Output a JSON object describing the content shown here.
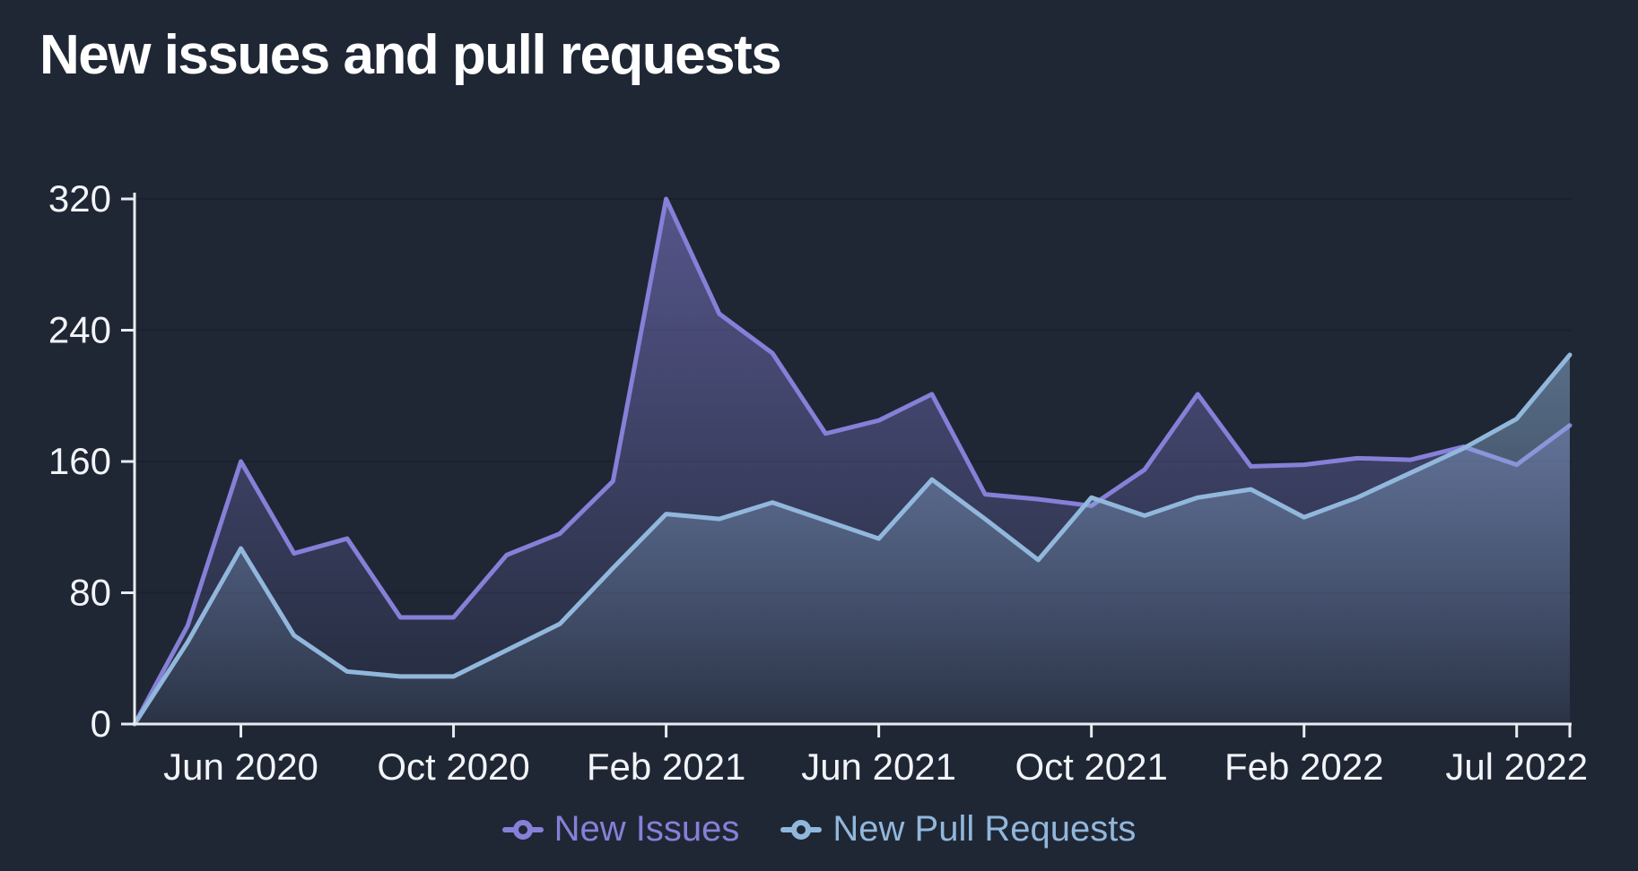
{
  "header": {
    "title": "New issues and pull requests"
  },
  "colors": {
    "background": "#1f2735",
    "axis_line": "#e9ecf1",
    "axis_text": "#f2f4f8",
    "gridline": "#1a212e",
    "title_text": "#ffffff",
    "issues_accent": "#8680d8",
    "pull_requests_accent": "#92b7dc"
  },
  "legend": {
    "items": [
      {
        "label": "New Issues",
        "color": "#8680d8"
      },
      {
        "label": "New Pull Requests",
        "color": "#92b7dc"
      }
    ]
  },
  "chart_data": {
    "type": "area",
    "title": "New issues and pull requests",
    "xlabel": "",
    "ylabel": "",
    "ylim": [
      0,
      320
    ],
    "y_tick_step": 80,
    "y_tick_labels": [
      "0",
      "80",
      "160",
      "240",
      "320"
    ],
    "grid": true,
    "legend_position": "bottom",
    "categories": [
      "Apr 2020",
      "May 2020",
      "Jun 2020",
      "Jul 2020",
      "Aug 2020",
      "Sep 2020",
      "Oct 2020",
      "Nov 2020",
      "Dec 2020",
      "Jan 2021",
      "Feb 2021",
      "Mar 2021",
      "Apr 2021",
      "May 2021",
      "Jun 2021",
      "Jul 2021",
      "Aug 2021",
      "Sep 2021",
      "Oct 2021",
      "Nov 2021",
      "Dec 2021",
      "Jan 2022",
      "Feb 2022",
      "Mar 2022",
      "Apr 2022",
      "May 2022",
      "Jul 2022",
      "Aug 2022"
    ],
    "x_tick_indices": [
      2,
      6,
      10,
      14,
      18,
      22,
      26
    ],
    "x_tick_labels": [
      "Jun 2020",
      "Oct 2020",
      "Feb 2021",
      "Jun 2021",
      "Oct 2021",
      "Feb 2022",
      "Jul 2022"
    ],
    "series": [
      {
        "name": "New Issues",
        "color": "#8680d8",
        "values": [
          0,
          60,
          160,
          104,
          113,
          65,
          65,
          103,
          116,
          148,
          320,
          250,
          226,
          177,
          185,
          201,
          140,
          137,
          133,
          155,
          201,
          157,
          158,
          162,
          161,
          169,
          158,
          182
        ]
      },
      {
        "name": "New Pull Requests",
        "color": "#92b7dc",
        "values": [
          0,
          50,
          107,
          54,
          32,
          29,
          29,
          45,
          61,
          95,
          128,
          125,
          135,
          124,
          113,
          149,
          125,
          100,
          138,
          127,
          138,
          143,
          126,
          138,
          153,
          168,
          186,
          225
        ]
      }
    ]
  }
}
